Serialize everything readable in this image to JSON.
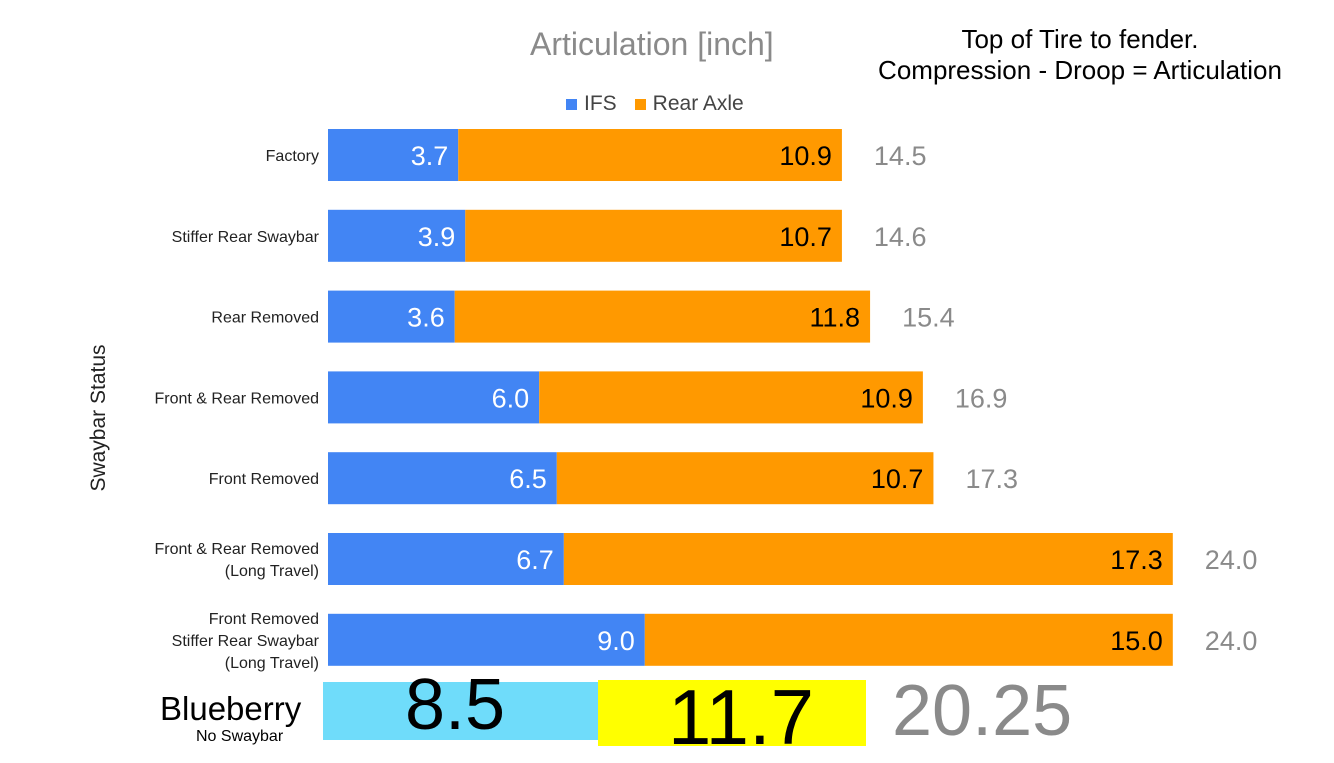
{
  "chart_data": {
    "type": "bar",
    "orientation": "horizontal",
    "stacked": true,
    "title": "Articulation [inch]",
    "note_lines": [
      "Top of Tire to fender.",
      "Compression - Droop = Articulation"
    ],
    "ylabel": "Swaybar Status",
    "xlim": [
      0,
      24
    ],
    "legend_position": "top",
    "categories": [
      [
        "Factory"
      ],
      [
        "Stiffer Rear Swaybar"
      ],
      [
        "Rear Removed"
      ],
      [
        "Front & Rear Removed"
      ],
      [
        "Front Removed"
      ],
      [
        "Front & Rear Removed",
        "(Long Travel)"
      ],
      [
        "Front Removed",
        "Stiffer Rear Swaybar",
        "(Long Travel)"
      ]
    ],
    "series": [
      {
        "name": "IFS",
        "color": "#4285f4",
        "label_color": "#ffffff",
        "values": [
          3.7,
          3.9,
          3.6,
          6.0,
          6.5,
          6.7,
          9.0
        ],
        "labels": [
          "3.7",
          "3.9",
          "3.6",
          "6.0",
          "6.5",
          "6.7",
          "9.0"
        ]
      },
      {
        "name": "Rear Axle",
        "color": "#ff9900",
        "label_color": "#000000",
        "values": [
          10.9,
          10.7,
          11.8,
          10.9,
          10.7,
          17.3,
          15.0
        ],
        "labels": [
          "10.9",
          "10.7",
          "11.8",
          "10.9",
          "10.7",
          "17.3",
          "15.0"
        ]
      }
    ],
    "totals": [
      "14.5",
      "14.6",
      "15.4",
      "16.9",
      "17.3",
      "24.0",
      "24.0"
    ]
  },
  "blueberry": {
    "name": "Blueberry",
    "subtitle": "No Swaybar",
    "ifs_value": "8.5",
    "rear_value": "11.7",
    "total": "20.25",
    "ifs_color": "#6fdcfa",
    "rear_color": "#ffff00"
  }
}
